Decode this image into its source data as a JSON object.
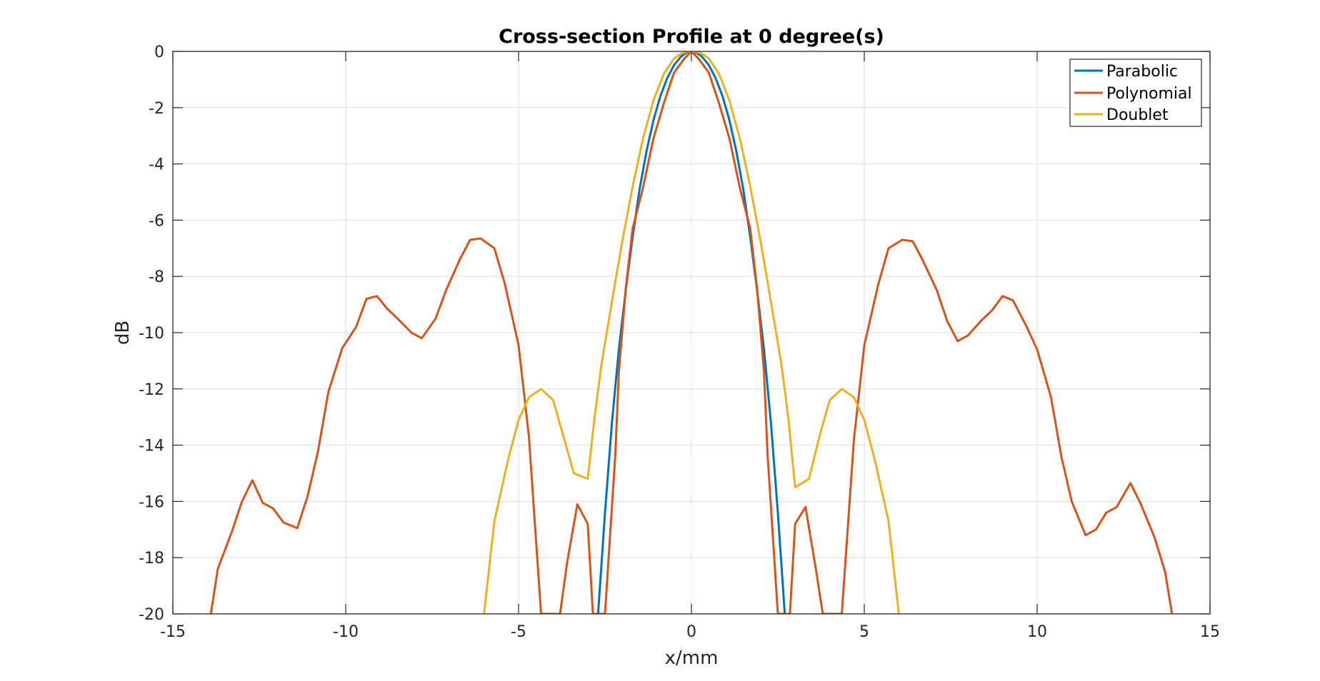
{
  "chart_data": {
    "type": "line",
    "title": "Cross-section Profile at 0 degree(s)",
    "xlabel": "x/mm",
    "ylabel": "dB",
    "xlim": [
      -15,
      15
    ],
    "ylim": [
      -20,
      0
    ],
    "xticks": [
      -15,
      -10,
      -5,
      0,
      5,
      10,
      15
    ],
    "yticks": [
      0,
      -2,
      -4,
      -6,
      -8,
      -10,
      -12,
      -14,
      -16,
      -18,
      -20
    ],
    "xtick_labels": [
      "-15",
      "-10",
      "-5",
      "0",
      "5",
      "10",
      "15"
    ],
    "ytick_labels": [
      "0",
      "-2",
      "-4",
      "-6",
      "-8",
      "-10",
      "-12",
      "-14",
      "-16",
      "-18",
      "-20"
    ],
    "grid": true,
    "legend_position": "top-right",
    "series": [
      {
        "name": "Parabolic",
        "color": "#0072BD",
        "x": [
          -2.7,
          -2.5,
          -2.3,
          -2.1,
          -1.9,
          -1.7,
          -1.5,
          -1.3,
          -1.1,
          -0.9,
          -0.7,
          -0.5,
          -0.3,
          -0.15,
          0,
          0.15,
          0.3,
          0.5,
          0.7,
          0.9,
          1.1,
          1.3,
          1.5,
          1.7,
          1.9,
          2.1,
          2.3,
          2.5,
          2.7
        ],
        "y": [
          -20,
          -16.4,
          -13.2,
          -10.6,
          -8.5,
          -6.6,
          -4.9,
          -3.55,
          -2.45,
          -1.6,
          -0.95,
          -0.48,
          -0.18,
          -0.05,
          0,
          -0.05,
          -0.18,
          -0.48,
          -0.95,
          -1.6,
          -2.45,
          -3.55,
          -4.9,
          -6.6,
          -8.5,
          -10.6,
          -13.2,
          -16.4,
          -20
        ]
      },
      {
        "name": "Polynomial",
        "color": "#D95319",
        "x": [
          -13.9,
          -13.7,
          -13.3,
          -13.0,
          -12.7,
          -12.4,
          -12.1,
          -11.8,
          -11.4,
          -11.1,
          -10.8,
          -10.5,
          -10.1,
          -9.7,
          -9.4,
          -9.1,
          -8.8,
          -8.5,
          -8.1,
          -7.8,
          -7.4,
          -7.1,
          -6.7,
          -6.4,
          -6.1,
          -5.7,
          -5.4,
          -5.0,
          -4.7,
          -4.35,
          -3.8,
          -3.6,
          -3.3,
          -3.0,
          -2.85,
          -2.5,
          -2.2,
          -2.1,
          -1.9,
          -1.7,
          -1.4,
          -1.1,
          -0.8,
          -0.5,
          -0.2,
          0,
          0.2,
          0.5,
          0.8,
          1.1,
          1.4,
          1.7,
          1.9,
          2.1,
          2.2,
          2.5,
          2.85,
          3.0,
          3.3,
          3.6,
          3.8,
          4.35,
          4.7,
          5.0,
          5.4,
          5.7,
          6.1,
          6.4,
          6.7,
          7.1,
          7.4,
          7.7,
          8.0,
          8.4,
          8.7,
          9.0,
          9.3,
          9.7,
          10.0,
          10.4,
          10.7,
          11.0,
          11.4,
          11.7,
          12.0,
          12.3,
          12.7,
          13.0,
          13.4,
          13.7,
          13.9
        ],
        "y": [
          -20,
          -18.4,
          -17.1,
          -16.0,
          -15.25,
          -16.05,
          -16.25,
          -16.75,
          -16.95,
          -15.8,
          -14.2,
          -12.1,
          -10.55,
          -9.8,
          -8.8,
          -8.7,
          -9.15,
          -9.5,
          -10.0,
          -10.2,
          -9.5,
          -8.5,
          -7.4,
          -6.7,
          -6.65,
          -7.0,
          -8.25,
          -10.45,
          -13.7,
          -20,
          -20,
          -18.2,
          -16.1,
          -16.8,
          -20,
          -20,
          -14.3,
          -11.4,
          -8.45,
          -6.3,
          -4.85,
          -3.1,
          -1.85,
          -0.75,
          -0.25,
          0,
          -0.25,
          -0.75,
          -1.85,
          -3.1,
          -4.85,
          -6.3,
          -8.45,
          -11.4,
          -14.3,
          -20,
          -20,
          -16.8,
          -16.2,
          -18.4,
          -20,
          -20,
          -13.8,
          -10.45,
          -8.3,
          -7.0,
          -6.7,
          -6.75,
          -7.45,
          -8.5,
          -9.6,
          -10.3,
          -10.1,
          -9.55,
          -9.2,
          -8.7,
          -8.85,
          -9.8,
          -10.6,
          -12.3,
          -14.4,
          -16.0,
          -17.2,
          -17.0,
          -16.4,
          -16.2,
          -15.35,
          -16.1,
          -17.3,
          -18.5,
          -20
        ]
      },
      {
        "name": "Doublet",
        "color": "#EDB120",
        "x": [
          -6.0,
          -5.7,
          -5.3,
          -5.0,
          -4.7,
          -4.35,
          -4.0,
          -3.7,
          -3.4,
          -3.0,
          -2.8,
          -2.6,
          -2.3,
          -2.0,
          -1.7,
          -1.4,
          -1.1,
          -0.8,
          -0.5,
          -0.3,
          -0.15,
          0,
          0.15,
          0.3,
          0.5,
          0.8,
          1.1,
          1.4,
          1.7,
          2.0,
          2.3,
          2.6,
          2.8,
          3.0,
          3.4,
          3.7,
          4.0,
          4.35,
          4.7,
          5.0,
          5.3,
          5.7,
          6.0
        ],
        "y": [
          -20,
          -16.7,
          -14.5,
          -13.1,
          -12.3,
          -12.0,
          -12.4,
          -13.7,
          -15.0,
          -15.2,
          -13.0,
          -11.1,
          -8.9,
          -6.75,
          -4.8,
          -3.1,
          -1.75,
          -0.8,
          -0.25,
          -0.08,
          -0.02,
          0,
          -0.02,
          -0.08,
          -0.25,
          -0.8,
          -1.75,
          -3.1,
          -4.8,
          -6.75,
          -8.9,
          -11.1,
          -13.0,
          -15.5,
          -15.2,
          -13.7,
          -12.4,
          -12.0,
          -12.3,
          -13.1,
          -14.5,
          -16.7,
          -20
        ]
      }
    ]
  }
}
